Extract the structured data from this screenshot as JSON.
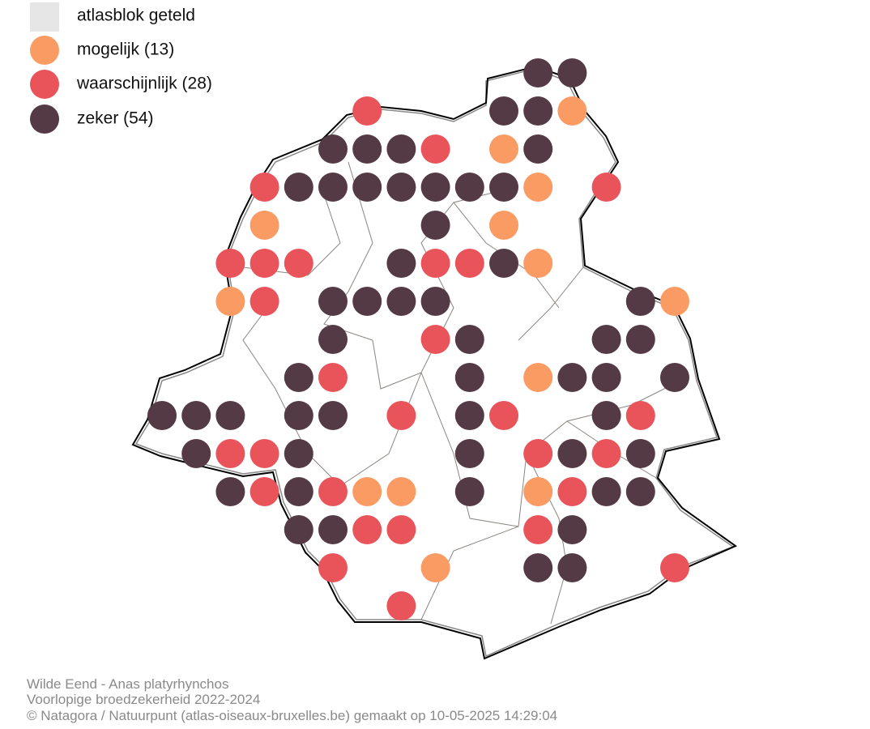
{
  "legend": {
    "items": [
      "atlasblok geteld",
      "mogelijk (13)",
      "waarschijnlijk (28)",
      "zeker (54)"
    ]
  },
  "caption": {
    "lines": [
      "Wilde Eend - Anas platyrhynchos",
      "Voorlopige broedzekerheid 2022-2024",
      "© Natagora / Natuurpunt (atlas-oiseaux-bruxelles.be) gemaakt op 10-05-2025 14:29:04"
    ]
  }
}
